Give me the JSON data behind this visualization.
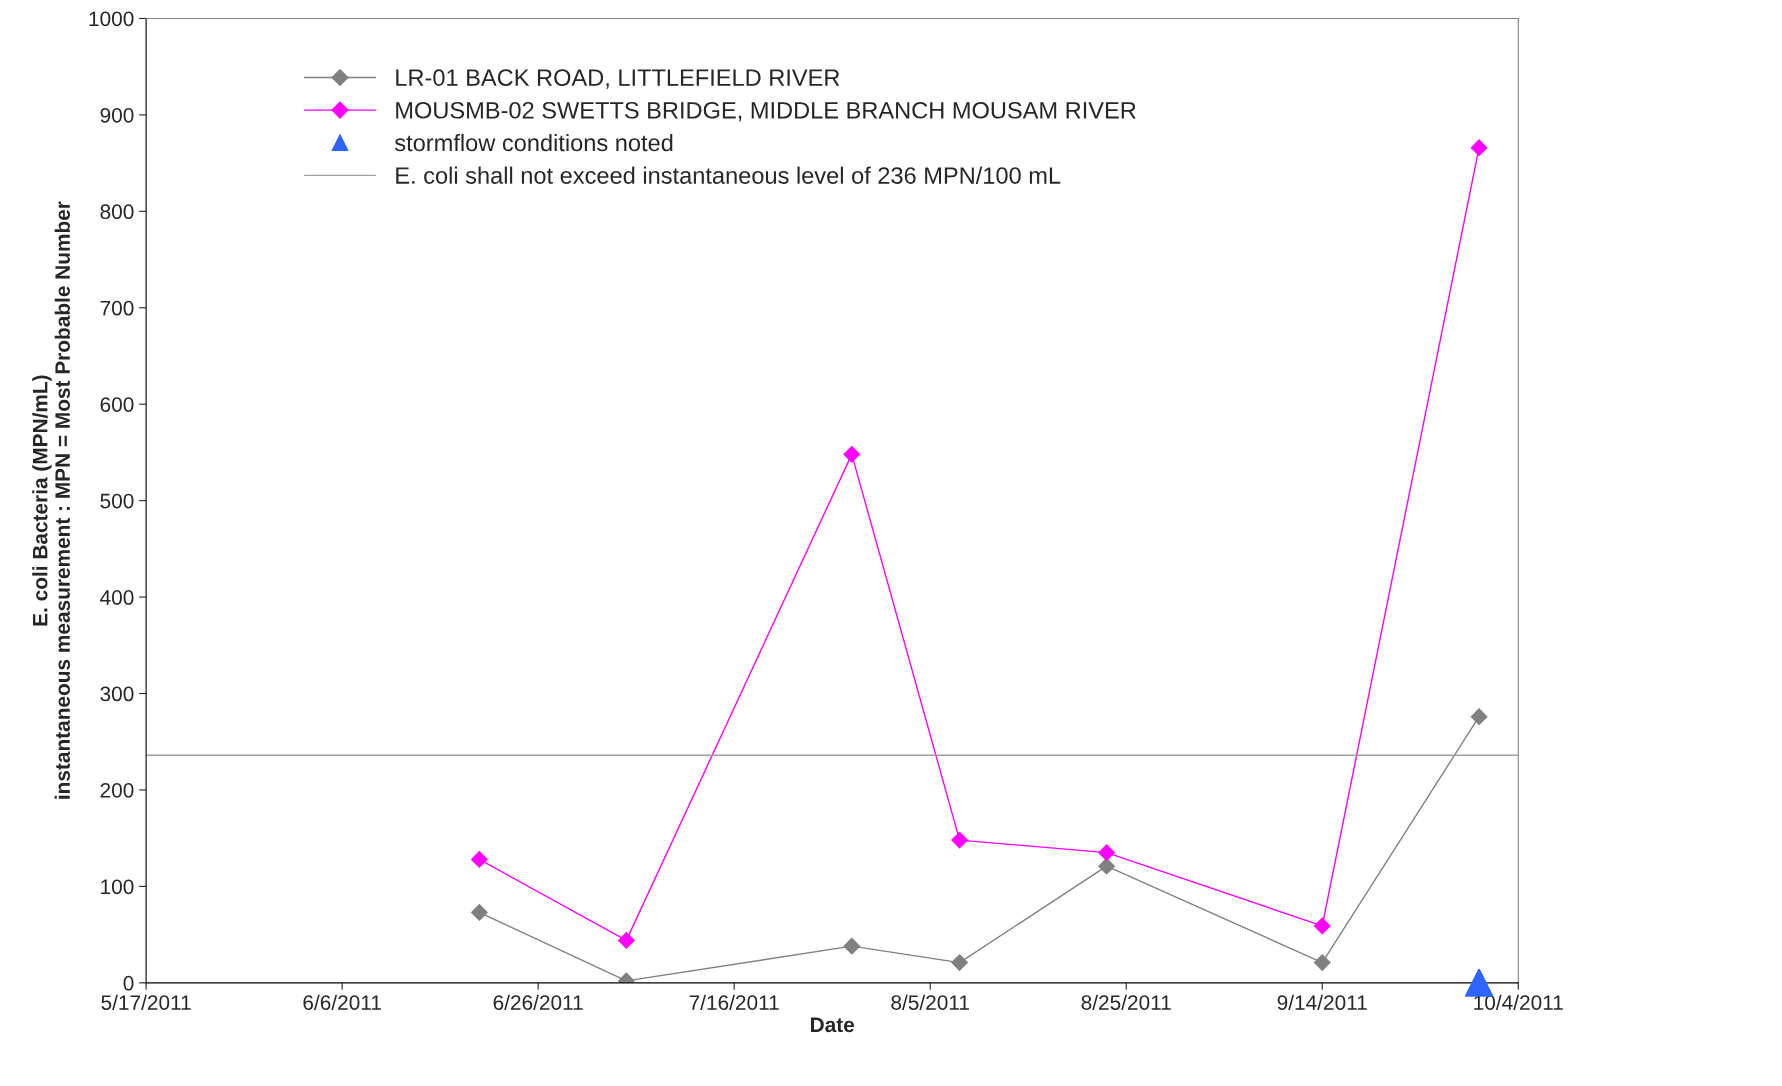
{
  "chart_data": {
    "type": "line",
    "xlabel": "Date",
    "ylabel": "E. coli Bacteria (MPN/mL)\ninstantaneous measurement : MPN = Most Probable Number",
    "x": [
      "2011-06-20",
      "2011-07-05",
      "2011-07-28",
      "2011-08-08",
      "2011-08-23",
      "2011-09-14",
      "2011-09-30"
    ],
    "series": [
      {
        "name": "LR-01 BACK ROAD, LITTLEFIELD RIVER",
        "color": "#808080",
        "marker": "diamond",
        "values": [
          73,
          2,
          38,
          21,
          121,
          21,
          276
        ]
      },
      {
        "name": "MOUSMB-02 SWETTS BRIDGE, MIDDLE BRANCH MOUSAM RIVER",
        "color": "#ff00ff",
        "marker": "diamond",
        "values": [
          128,
          44,
          548,
          148,
          135,
          59,
          866
        ]
      },
      {
        "name": "stormflow conditions noted",
        "type": "scatter",
        "color": "#2e64ff",
        "marker": "triangle",
        "x": [
          "2011-09-30"
        ],
        "values": [
          0
        ]
      }
    ],
    "ref_lines": [
      {
        "axis": "y",
        "value": 236,
        "label": "E. coli shall not exceed instantaneous level of 236 MPN/100 mL",
        "color": "#a0a0a0"
      }
    ],
    "xlim": [
      "2011-05-17",
      "2011-10-04"
    ],
    "xticks": [
      {
        "value": "2011-05-17",
        "label": "5/17/2011"
      },
      {
        "value": "2011-06-06",
        "label": "6/6/2011"
      },
      {
        "value": "2011-06-26",
        "label": "6/26/2011"
      },
      {
        "value": "2011-07-16",
        "label": "7/16/2011"
      },
      {
        "value": "2011-08-05",
        "label": "8/5/2011"
      },
      {
        "value": "2011-08-25",
        "label": "8/25/2011"
      },
      {
        "value": "2011-09-14",
        "label": "9/14/2011"
      },
      {
        "value": "2011-10-04",
        "label": "10/4/2011"
      }
    ],
    "ylim": [
      0,
      1000
    ],
    "yticks": [
      0,
      100,
      200,
      300,
      400,
      500,
      600,
      700,
      800,
      900,
      1000
    ],
    "grid": false,
    "legend": "top left"
  }
}
